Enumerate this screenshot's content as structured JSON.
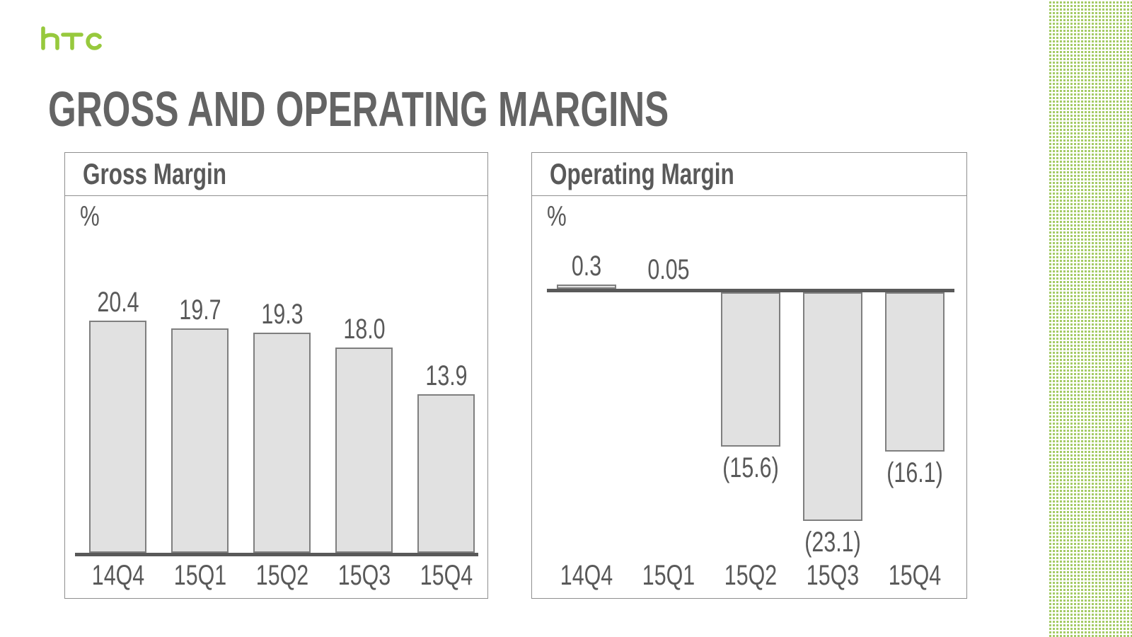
{
  "brand": {
    "logo": "htc"
  },
  "title": "GROSS AND OPERATING MARGINS",
  "chart_data": [
    {
      "type": "bar",
      "title": "Gross Margin",
      "ylabel": "%",
      "categories": [
        "14Q4",
        "15Q1",
        "15Q2",
        "15Q3",
        "15Q4"
      ],
      "values": [
        20.4,
        19.7,
        19.3,
        18.0,
        13.9
      ],
      "value_labels": [
        "20.4",
        "19.7",
        "19.3",
        "18.0",
        "13.9"
      ],
      "ylim": [
        0,
        25
      ],
      "grid": false,
      "legend": "none"
    },
    {
      "type": "bar",
      "title": "Operating Margin",
      "ylabel": "%",
      "categories": [
        "14Q4",
        "15Q1",
        "15Q2",
        "15Q3",
        "15Q4"
      ],
      "values": [
        0.3,
        0.05,
        -15.6,
        -23.1,
        -16.1
      ],
      "value_labels": [
        "0.3",
        "0.05",
        "(15.6)",
        "(23.1)",
        "(16.1)"
      ],
      "ylim": [
        -25,
        5
      ],
      "grid": false,
      "legend": "none"
    }
  ],
  "colors": {
    "accent_green": "#97C93D",
    "pattern_green": "#A5CB66",
    "bar_fill": "#E1E1E1",
    "bar_border": "#7F7F7F",
    "axis_line": "#595959",
    "text": "#595959",
    "title_text": "#646464",
    "box_border": "#8F8F8F"
  }
}
